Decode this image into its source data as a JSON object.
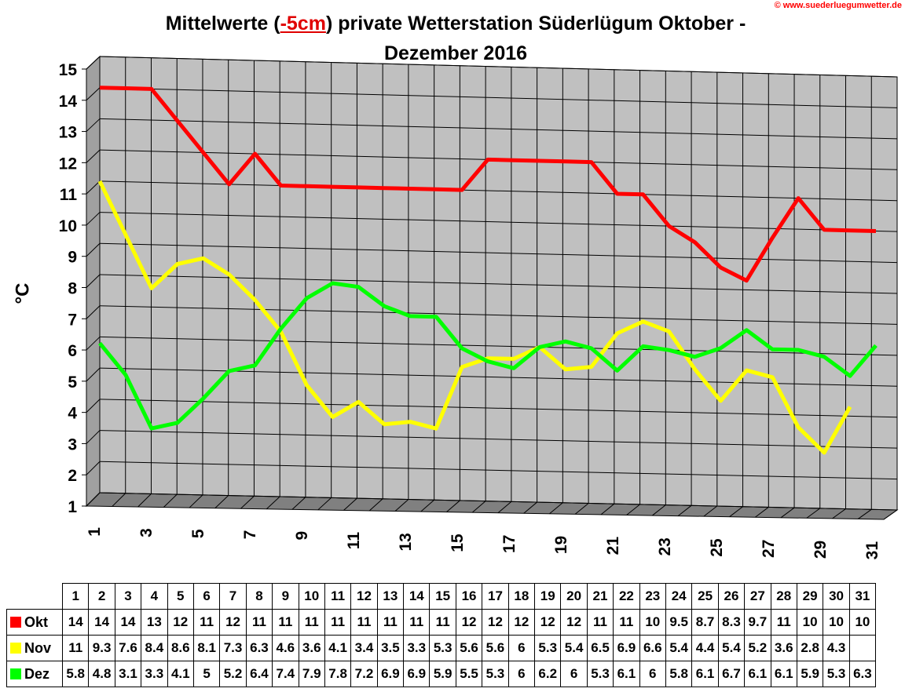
{
  "watermark": "© www.suederluegumwetter.de",
  "chart_data": {
    "type": "line",
    "title_pre": "Mittelwerte (",
    "title_hl": "-5cm",
    "title_post": ") private Wetterstation Süderlügum Oktober -",
    "title_line2": "Dezember 2016",
    "ylabel": "°C",
    "ylim": [
      1,
      15
    ],
    "yticks": [
      1,
      2,
      3,
      4,
      5,
      6,
      7,
      8,
      9,
      10,
      11,
      12,
      13,
      14,
      15
    ],
    "x": [
      1,
      2,
      3,
      4,
      5,
      6,
      7,
      8,
      9,
      10,
      11,
      12,
      13,
      14,
      15,
      16,
      17,
      18,
      19,
      20,
      21,
      22,
      23,
      24,
      25,
      26,
      27,
      28,
      29,
      30,
      31
    ],
    "xtick_labels": [
      1,
      3,
      5,
      7,
      9,
      11,
      13,
      15,
      17,
      19,
      21,
      23,
      25,
      27,
      29,
      31
    ],
    "grid": true,
    "series": [
      {
        "name": "Okt",
        "color": "#ff0000",
        "values": [
          14,
          14,
          14,
          13,
          12,
          11,
          12,
          11,
          11,
          11,
          11,
          11,
          11,
          11,
          11,
          12,
          12,
          12,
          12,
          12,
          11,
          11,
          10,
          9.5,
          8.7,
          8.3,
          9.7,
          11,
          10,
          10,
          10
        ]
      },
      {
        "name": "Nov",
        "color": "#ffff00",
        "values": [
          11,
          9.3,
          7.6,
          8.4,
          8.6,
          8.1,
          7.3,
          6.3,
          4.6,
          3.6,
          4.1,
          3.4,
          3.5,
          3.3,
          5.3,
          5.6,
          5.6,
          6,
          5.3,
          5.4,
          6.5,
          6.9,
          6.6,
          5.4,
          4.4,
          5.4,
          5.2,
          3.6,
          2.8,
          4.3,
          null
        ]
      },
      {
        "name": "Dez",
        "color": "#00ff00",
        "values": [
          5.8,
          4.8,
          3.1,
          3.3,
          4.1,
          5,
          5.2,
          6.4,
          7.4,
          7.9,
          7.8,
          7.2,
          6.9,
          6.9,
          5.9,
          5.5,
          5.3,
          6,
          6.2,
          6,
          5.3,
          6.1,
          6,
          5.8,
          6.1,
          6.7,
          6.1,
          6.1,
          5.9,
          5.3,
          6.3
        ]
      }
    ]
  }
}
